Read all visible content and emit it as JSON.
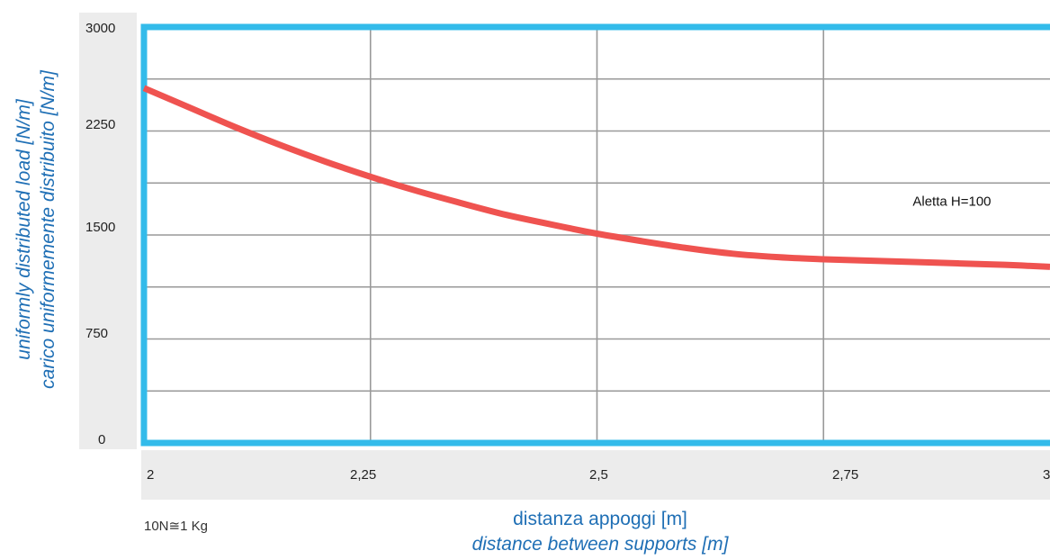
{
  "chart_data": {
    "type": "line",
    "title": "",
    "xlabel": [
      "distanza appoggi [m]",
      "distance between supports [m]"
    ],
    "ylabel": [
      "uniformly distributed load [N/m]",
      "carico uniformemente distribuito [N/m]"
    ],
    "xlim": [
      2,
      3
    ],
    "ylim": [
      0,
      3000
    ],
    "x_ticks": [
      "2",
      "2,25",
      "2,5",
      "2,75",
      "3"
    ],
    "y_ticks": [
      "3000",
      "2250",
      "1500",
      "750",
      "0"
    ],
    "grid": true,
    "series": [
      {
        "name": "Aletta H=100",
        "color": "#ef5350",
        "x": [
          2.0,
          2.05,
          2.1,
          2.15,
          2.2,
          2.25,
          2.3,
          2.35,
          2.4,
          2.45,
          2.5,
          2.55,
          2.6,
          2.65,
          2.7,
          2.75,
          2.8,
          2.85,
          2.9,
          2.95,
          3.0
        ],
        "y": [
          2560,
          2420,
          2280,
          2150,
          2030,
          1920,
          1820,
          1730,
          1645,
          1575,
          1510,
          1455,
          1405,
          1365,
          1340,
          1325,
          1315,
          1305,
          1295,
          1285,
          1270
        ]
      }
    ],
    "series_label": "Aletta H=100"
  },
  "note": "10N≅1 Kg",
  "colors": {
    "frame": "#33bbea",
    "grid": "#999999",
    "line": "#ef5350",
    "axis_text": "#1f6fb5"
  }
}
